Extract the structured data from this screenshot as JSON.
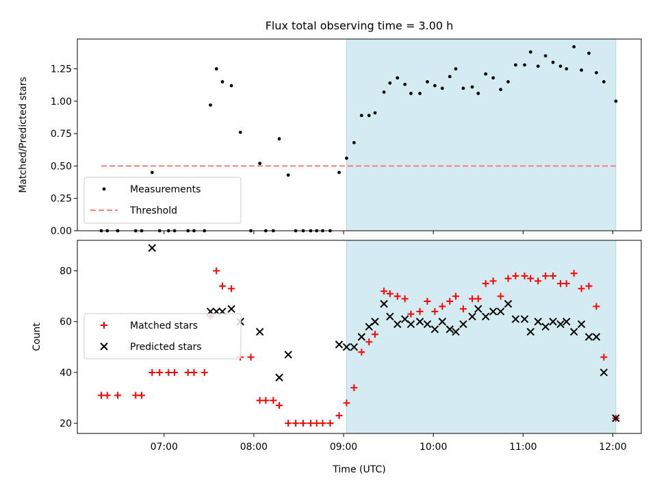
{
  "title": "Flux total observing time = 3.00 h",
  "colors": {
    "measurement": "#000000",
    "threshold": "#f08080",
    "matched": "#ff0000",
    "predicted": "#000000",
    "window_fill": "#add8e6"
  },
  "chart_data": [
    {
      "type": "scatter",
      "ylabel": "Matched/Predicted stars",
      "xlim": [
        "06:02",
        "12:19"
      ],
      "ylim": [
        0,
        1.48
      ],
      "yticks": [
        0.0,
        0.25,
        0.5,
        0.75,
        1.0,
        1.25
      ],
      "ytick_labels": [
        "0.00",
        "0.25",
        "0.50",
        "0.75",
        "1.00",
        "1.25"
      ],
      "legend_position": "lower-left",
      "shaded_window": [
        "09:02",
        "12:02"
      ],
      "threshold": {
        "name": "Threshold",
        "y": 0.5,
        "x_range": [
          "06:18",
          "12:02"
        ]
      },
      "series": [
        {
          "name": "Measurements",
          "points": [
            [
              "06:18",
              0.0
            ],
            [
              "06:22",
              0.0
            ],
            [
              "06:29",
              0.0
            ],
            [
              "06:41",
              0.0
            ],
            [
              "06:45",
              0.0
            ],
            [
              "06:52",
              0.45
            ],
            [
              "06:57",
              0.0
            ],
            [
              "07:03",
              0.0
            ],
            [
              "07:07",
              0.0
            ],
            [
              "07:16",
              0.0
            ],
            [
              "07:20",
              0.0
            ],
            [
              "07:27",
              0.0
            ],
            [
              "07:31",
              0.97
            ],
            [
              "07:35",
              1.25
            ],
            [
              "07:39",
              1.15
            ],
            [
              "07:45",
              1.12
            ],
            [
              "07:51",
              0.76
            ],
            [
              "07:58",
              0.0
            ],
            [
              "08:04",
              0.52
            ],
            [
              "08:08",
              0.0
            ],
            [
              "08:13",
              0.0
            ],
            [
              "08:17",
              0.71
            ],
            [
              "08:23",
              0.43
            ],
            [
              "08:28",
              0.0
            ],
            [
              "08:33",
              0.0
            ],
            [
              "08:38",
              0.0
            ],
            [
              "08:42",
              0.0
            ],
            [
              "08:46",
              0.0
            ],
            [
              "08:51",
              0.0
            ],
            [
              "08:57",
              0.45
            ],
            [
              "09:02",
              0.56
            ],
            [
              "09:07",
              0.68
            ],
            [
              "09:12",
              0.89
            ],
            [
              "09:17",
              0.89
            ],
            [
              "09:21",
              0.91
            ],
            [
              "09:27",
              1.07
            ],
            [
              "09:31",
              1.14
            ],
            [
              "09:36",
              1.18
            ],
            [
              "09:41",
              1.13
            ],
            [
              "09:45",
              1.06
            ],
            [
              "09:51",
              1.06
            ],
            [
              "09:56",
              1.15
            ],
            [
              "10:01",
              1.12
            ],
            [
              "10:06",
              1.1
            ],
            [
              "10:11",
              1.19
            ],
            [
              "10:15",
              1.25
            ],
            [
              "10:20",
              1.1
            ],
            [
              "10:26",
              1.11
            ],
            [
              "10:30",
              1.06
            ],
            [
              "10:35",
              1.21
            ],
            [
              "10:40",
              1.18
            ],
            [
              "10:45",
              1.09
            ],
            [
              "10:50",
              1.15
            ],
            [
              "10:55",
              1.28
            ],
            [
              "11:01",
              1.28
            ],
            [
              "11:05",
              1.38
            ],
            [
              "11:10",
              1.27
            ],
            [
              "11:15",
              1.35
            ],
            [
              "11:20",
              1.3
            ],
            [
              "11:25",
              1.27
            ],
            [
              "11:29",
              1.25
            ],
            [
              "11:34",
              1.42
            ],
            [
              "11:39",
              1.24
            ],
            [
              "11:44",
              1.37
            ],
            [
              "11:49",
              1.22
            ],
            [
              "11:54",
              1.15
            ],
            [
              "12:02",
              1.0
            ]
          ]
        }
      ]
    },
    {
      "type": "scatter",
      "xlabel": "Time (UTC)",
      "ylabel": "Count",
      "xlim": [
        "06:02",
        "12:19"
      ],
      "ylim": [
        16,
        92
      ],
      "xticks": [
        "07:00",
        "08:00",
        "09:00",
        "10:00",
        "11:00",
        "12:00"
      ],
      "xtick_labels": [
        "07:00",
        "08:00",
        "09:00",
        "10:00",
        "11:00",
        "12:00"
      ],
      "yticks": [
        20,
        40,
        60,
        80
      ],
      "ytick_labels": [
        "20",
        "40",
        "60",
        "80"
      ],
      "legend_position": "center-left",
      "shaded_window": [
        "09:02",
        "12:02"
      ],
      "series": [
        {
          "name": "Matched stars",
          "marker": "plus",
          "points": [
            [
              "06:18",
              31
            ],
            [
              "06:22",
              31
            ],
            [
              "06:29",
              31
            ],
            [
              "06:41",
              31
            ],
            [
              "06:45",
              31
            ],
            [
              "06:52",
              40
            ],
            [
              "06:57",
              40
            ],
            [
              "07:03",
              40
            ],
            [
              "07:07",
              40
            ],
            [
              "07:16",
              40
            ],
            [
              "07:20",
              40
            ],
            [
              "07:27",
              40
            ],
            [
              "07:31",
              62
            ],
            [
              "07:35",
              80
            ],
            [
              "07:39",
              74
            ],
            [
              "07:45",
              73
            ],
            [
              "07:51",
              46
            ],
            [
              "07:58",
              46
            ],
            [
              "08:04",
              29
            ],
            [
              "08:08",
              29
            ],
            [
              "08:13",
              29
            ],
            [
              "08:17",
              27
            ],
            [
              "08:23",
              20
            ],
            [
              "08:28",
              20
            ],
            [
              "08:33",
              20
            ],
            [
              "08:38",
              20
            ],
            [
              "08:42",
              20
            ],
            [
              "08:46",
              20
            ],
            [
              "08:51",
              20
            ],
            [
              "08:57",
              23
            ],
            [
              "09:02",
              28
            ],
            [
              "09:07",
              34
            ],
            [
              "09:12",
              48
            ],
            [
              "09:17",
              52
            ],
            [
              "09:21",
              55
            ],
            [
              "09:27",
              72
            ],
            [
              "09:31",
              71
            ],
            [
              "09:36",
              70
            ],
            [
              "09:41",
              69
            ],
            [
              "09:45",
              63
            ],
            [
              "09:51",
              64
            ],
            [
              "09:56",
              68
            ],
            [
              "10:01",
              64
            ],
            [
              "10:06",
              66
            ],
            [
              "10:11",
              68
            ],
            [
              "10:15",
              70
            ],
            [
              "10:20",
              65
            ],
            [
              "10:26",
              69
            ],
            [
              "10:30",
              69
            ],
            [
              "10:35",
              75
            ],
            [
              "10:40",
              76
            ],
            [
              "10:45",
              70
            ],
            [
              "10:50",
              77
            ],
            [
              "10:55",
              78
            ],
            [
              "11:01",
              78
            ],
            [
              "11:05",
              77
            ],
            [
              "11:10",
              76
            ],
            [
              "11:15",
              78
            ],
            [
              "11:20",
              78
            ],
            [
              "11:25",
              75
            ],
            [
              "11:29",
              75
            ],
            [
              "11:34",
              79
            ],
            [
              "11:39",
              73
            ],
            [
              "11:44",
              74
            ],
            [
              "11:49",
              66
            ],
            [
              "11:54",
              46
            ],
            [
              "12:02",
              22
            ]
          ]
        },
        {
          "name": "Predicted stars",
          "marker": "x",
          "points": [
            [
              "06:52",
              89
            ],
            [
              "07:31",
              64
            ],
            [
              "07:35",
              64
            ],
            [
              "07:39",
              64
            ],
            [
              "07:45",
              65
            ],
            [
              "07:51",
              60
            ],
            [
              "08:04",
              56
            ],
            [
              "08:17",
              38
            ],
            [
              "08:23",
              47
            ],
            [
              "08:57",
              51
            ],
            [
              "09:02",
              50
            ],
            [
              "09:07",
              50
            ],
            [
              "09:12",
              54
            ],
            [
              "09:17",
              58
            ],
            [
              "09:21",
              60
            ],
            [
              "09:27",
              67
            ],
            [
              "09:31",
              62
            ],
            [
              "09:36",
              59
            ],
            [
              "09:41",
              61
            ],
            [
              "09:45",
              59
            ],
            [
              "09:51",
              60
            ],
            [
              "09:56",
              59
            ],
            [
              "10:01",
              57
            ],
            [
              "10:06",
              60
            ],
            [
              "10:11",
              57
            ],
            [
              "10:15",
              56
            ],
            [
              "10:20",
              59
            ],
            [
              "10:26",
              62
            ],
            [
              "10:30",
              65
            ],
            [
              "10:35",
              62
            ],
            [
              "10:40",
              64
            ],
            [
              "10:45",
              64
            ],
            [
              "10:50",
              67
            ],
            [
              "10:55",
              61
            ],
            [
              "11:01",
              61
            ],
            [
              "11:05",
              56
            ],
            [
              "11:10",
              60
            ],
            [
              "11:15",
              58
            ],
            [
              "11:20",
              60
            ],
            [
              "11:25",
              59
            ],
            [
              "11:29",
              60
            ],
            [
              "11:34",
              56
            ],
            [
              "11:39",
              59
            ],
            [
              "11:44",
              54
            ],
            [
              "11:49",
              54
            ],
            [
              "11:54",
              40
            ],
            [
              "12:02",
              22
            ]
          ]
        }
      ]
    }
  ]
}
